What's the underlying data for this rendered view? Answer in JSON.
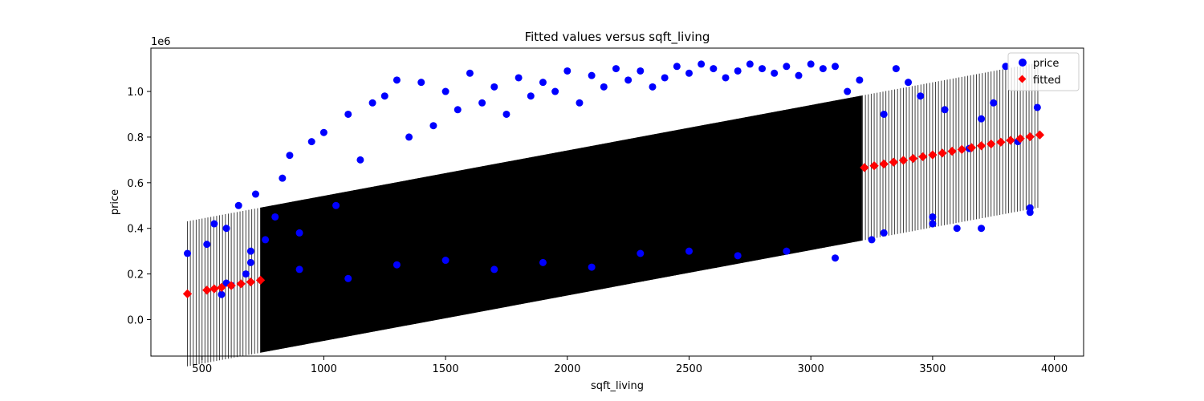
{
  "chart_data": {
    "type": "scatter",
    "title": "Fitted values versus sqft_living",
    "xlabel": "sqft_living",
    "ylabel": "price",
    "y_offset_label": "1e6",
    "xlim": [
      290,
      4120
    ],
    "ylim": [
      -0.16,
      1.19
    ],
    "x_ticks": [
      500,
      1000,
      1500,
      2000,
      2500,
      3000,
      3500,
      4000
    ],
    "y_ticks": [
      0.0,
      0.2,
      0.4,
      0.6,
      0.8,
      1.0
    ],
    "x_tick_labels": [
      "500",
      "1000",
      "1500",
      "2000",
      "2500",
      "3000",
      "3500",
      "4000"
    ],
    "y_tick_labels": [
      "0.0",
      "0.2",
      "0.4",
      "0.6",
      "0.8",
      "1.0"
    ],
    "grid": false,
    "legend": {
      "position": "top-right",
      "entries": [
        "price",
        "fitted"
      ]
    },
    "fit": {
      "intercept": 0.0255,
      "slope": 0.000199,
      "half_interval": 0.318
    },
    "x_range": [
      440,
      3940
    ],
    "series": [
      {
        "name": "price",
        "marker": "circle",
        "color": "#0000ff",
        "x": [
          440,
          520,
          550,
          580,
          600,
          620,
          650,
          680,
          700,
          720,
          760,
          800,
          830,
          860,
          900,
          950,
          1000,
          1050,
          1100,
          1150,
          1200,
          1250,
          1300,
          1350,
          1400,
          1450,
          1500,
          1550,
          1600,
          1650,
          1700,
          1750,
          1800,
          1850,
          1900,
          1950,
          2000,
          2050,
          2100,
          2150,
          2200,
          2250,
          2300,
          2350,
          2400,
          2450,
          2500,
          2550,
          2600,
          2650,
          2700,
          2750,
          2800,
          2850,
          2900,
          2950,
          3000,
          3050,
          3100,
          3150,
          3200,
          3250,
          3300,
          3350,
          3400,
          3450,
          3500,
          3550,
          3600,
          3650,
          3700,
          3750,
          3800,
          3850,
          3900,
          3930,
          600,
          700,
          900,
          1100,
          1300,
          1500,
          1700,
          1900,
          2100,
          2300,
          2500,
          2700,
          2900,
          3100,
          3300,
          3500,
          3700,
          3900
        ],
        "y": [
          0.29,
          0.33,
          0.42,
          0.11,
          0.4,
          0.15,
          0.5,
          0.2,
          0.3,
          0.55,
          0.35,
          0.45,
          0.62,
          0.72,
          0.38,
          0.78,
          0.82,
          0.5,
          0.9,
          0.7,
          0.95,
          0.98,
          1.05,
          0.8,
          1.04,
          0.85,
          1.0,
          0.92,
          1.08,
          0.95,
          1.02,
          0.9,
          1.06,
          0.98,
          1.04,
          1.0,
          1.09,
          0.95,
          1.07,
          1.02,
          1.1,
          1.05,
          1.09,
          1.02,
          1.06,
          1.11,
          1.08,
          1.12,
          1.1,
          1.06,
          1.09,
          1.12,
          1.1,
          1.08,
          1.11,
          1.07,
          1.12,
          1.1,
          1.11,
          1.0,
          1.05,
          0.35,
          0.9,
          1.1,
          1.04,
          0.98,
          0.45,
          0.92,
          0.4,
          0.75,
          0.88,
          0.95,
          1.11,
          0.78,
          0.49,
          0.93,
          0.16,
          0.25,
          0.22,
          0.18,
          0.24,
          0.26,
          0.22,
          0.25,
          0.23,
          0.29,
          0.3,
          0.28,
          0.3,
          0.27,
          0.38,
          0.42,
          0.4,
          0.47
        ]
      },
      {
        "name": "fitted",
        "marker": "diamond",
        "color": "#ff0000",
        "x": [
          440,
          520,
          550,
          580,
          620,
          660,
          700,
          740,
          3220,
          3260,
          3300,
          3340,
          3380,
          3420,
          3460,
          3500,
          3540,
          3580,
          3620,
          3660,
          3700,
          3740,
          3780,
          3820,
          3860,
          3900,
          3940
        ]
      }
    ]
  }
}
